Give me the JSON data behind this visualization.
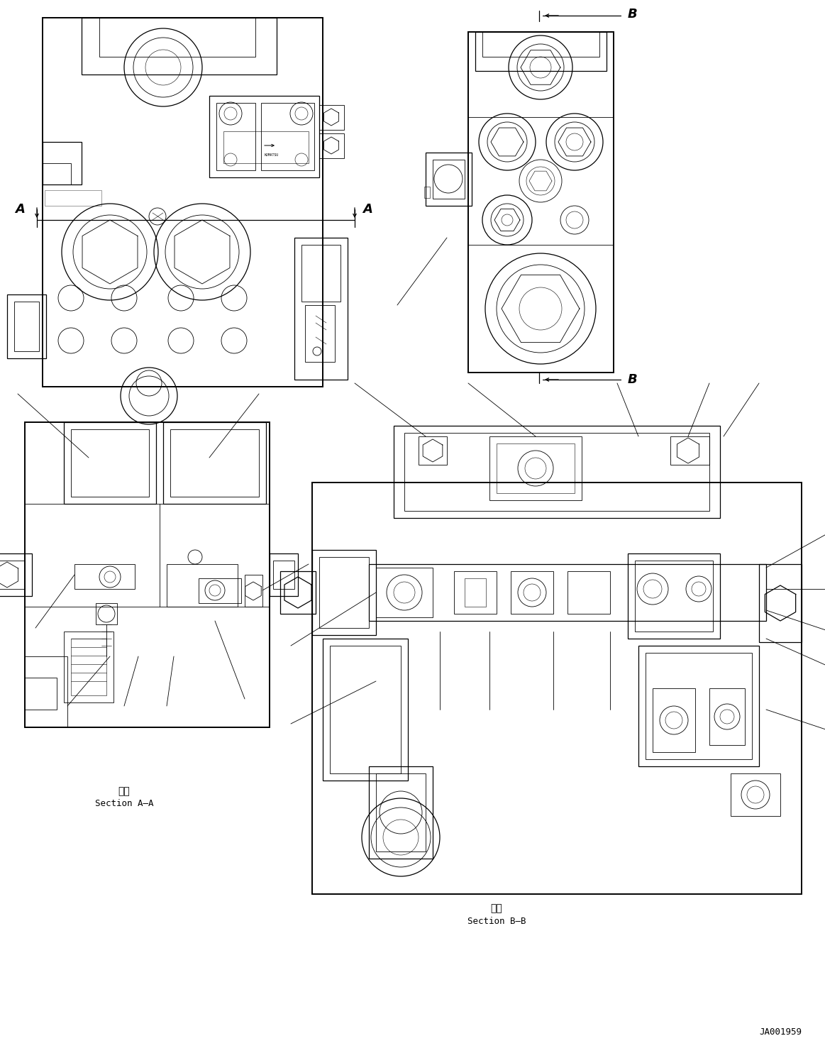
{
  "background_color": "#ffffff",
  "fig_width": 11.63,
  "fig_height": 14.84,
  "dpi": 100,
  "section_aa_label_kanji": "断面",
  "section_aa_label": "Section A–A",
  "section_bb_label_kanji": "断面",
  "section_bb_label": "Section B–B",
  "drawing_number": "JA001959",
  "label_A": "A",
  "label_B": "B",
  "line_color": "#000000",
  "lw_thick": 1.4,
  "lw_med": 0.9,
  "lw_thin": 0.6,
  "lw_hair": 0.4
}
